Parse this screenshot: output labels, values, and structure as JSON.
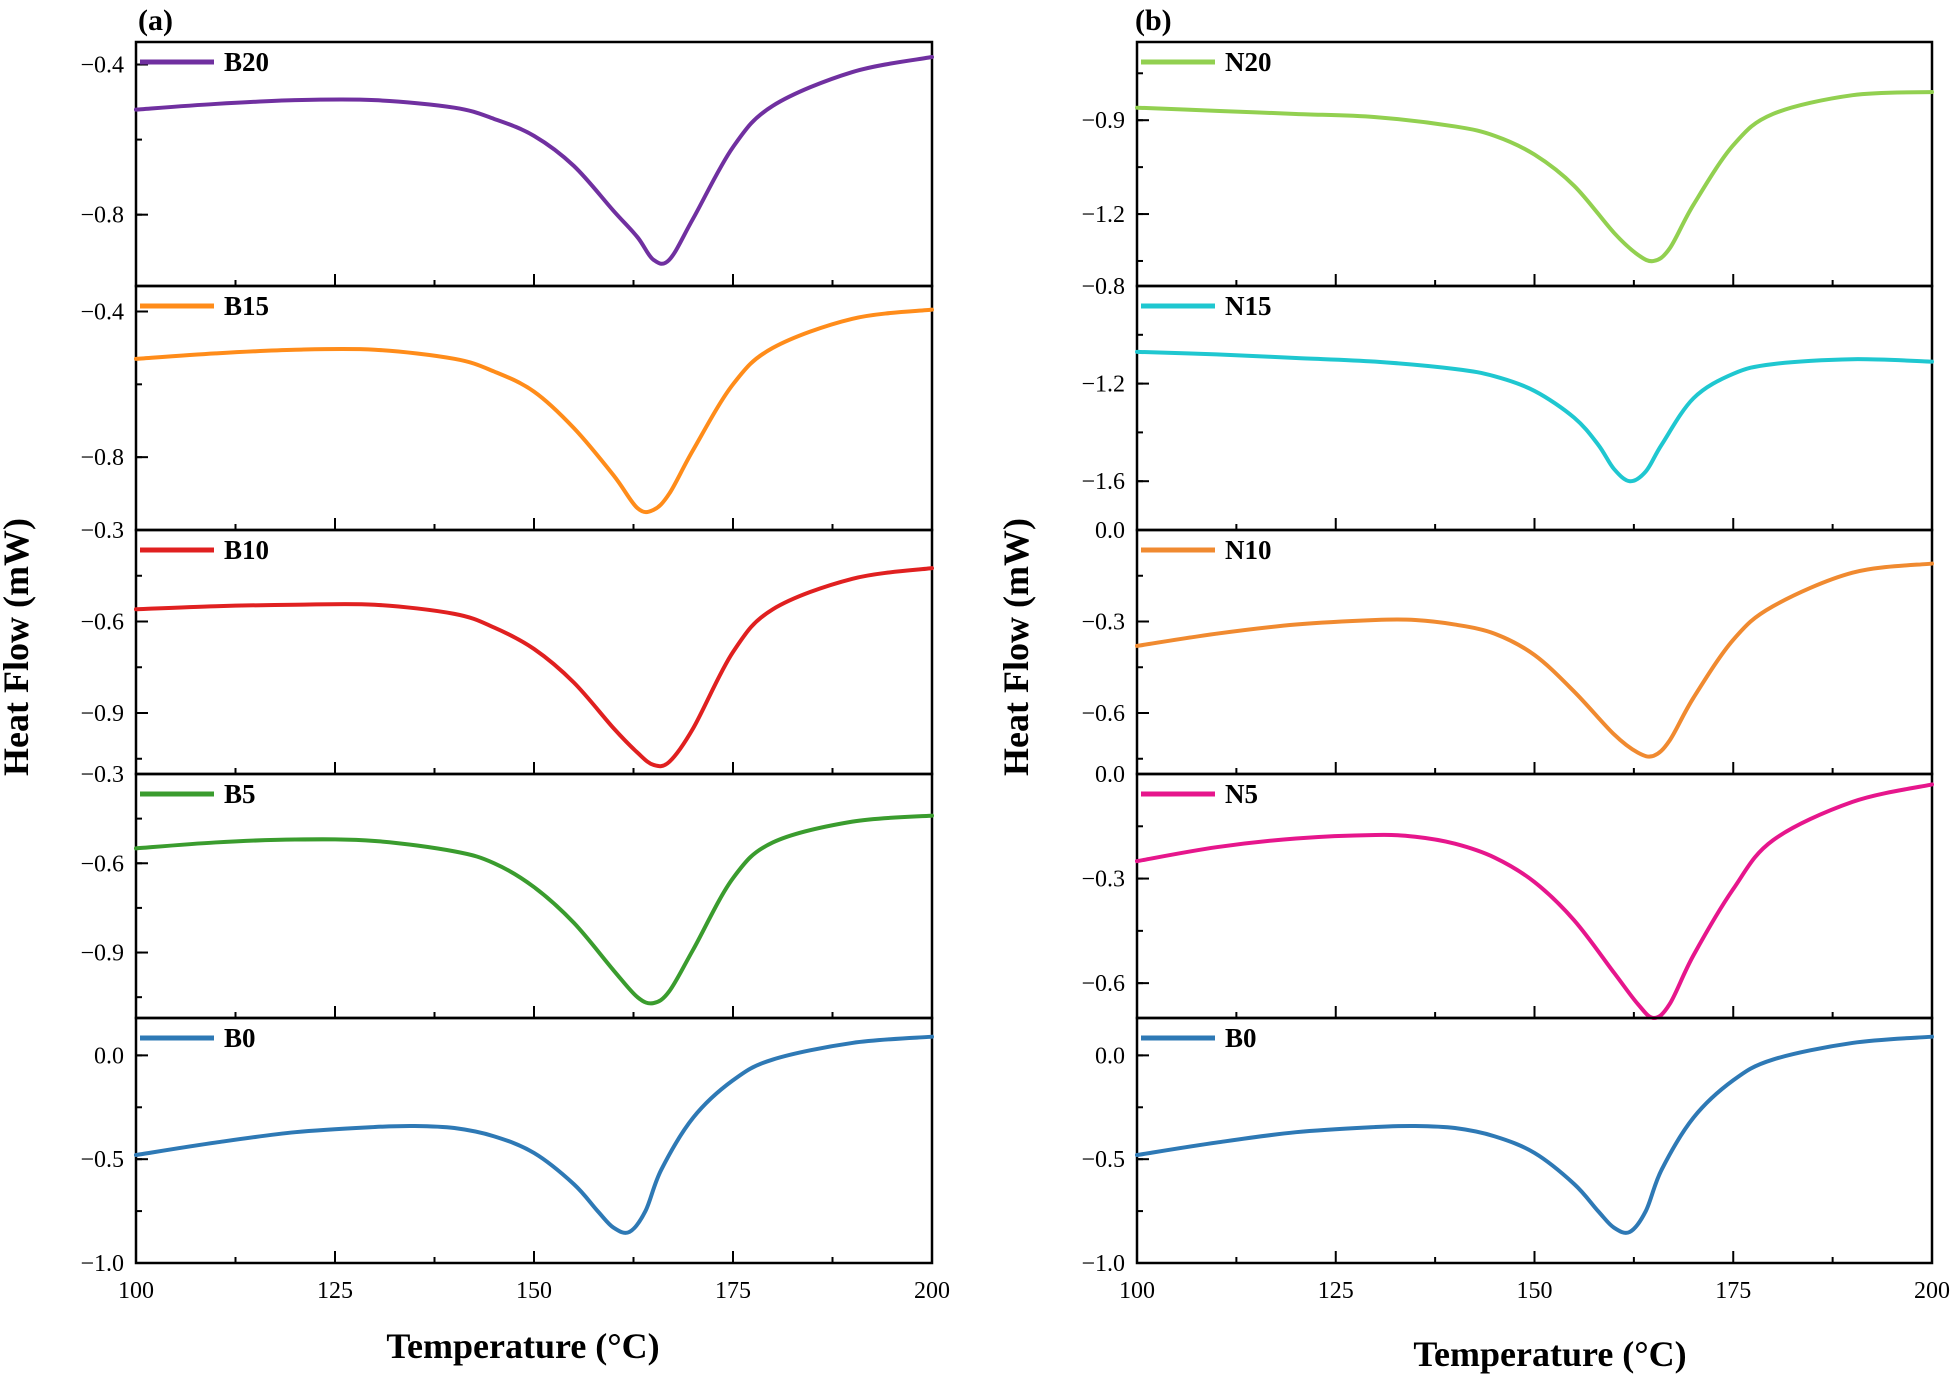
{
  "xlabel": "Temperature (°C)",
  "ylabel": "Heat Flow (mW)",
  "chart_data": [
    {
      "type": "line",
      "panel_label": "(a)",
      "xlabel": "Temperature (°C)",
      "ylabel": "Heat Flow (mW)",
      "xlim": [
        100,
        200
      ],
      "xticks": [
        100,
        125,
        150,
        175,
        200
      ],
      "subplots": [
        {
          "name": "B20",
          "color": "#7030a0",
          "ylim": [
            -0.99,
            -0.34
          ],
          "yticks": [
            -0.4,
            -0.8
          ],
          "x": [
            100,
            110,
            120,
            130,
            140,
            145,
            150,
            155,
            160,
            163,
            165,
            167,
            170,
            175,
            180,
            190,
            200
          ],
          "y": [
            -0.52,
            -0.505,
            -0.495,
            -0.495,
            -0.515,
            -0.545,
            -0.59,
            -0.67,
            -0.79,
            -0.86,
            -0.92,
            -0.92,
            -0.81,
            -0.62,
            -0.51,
            -0.42,
            -0.38
          ]
        },
        {
          "name": "B15",
          "color": "#ff8c1a",
          "ylim": [
            -1.0,
            -0.33
          ],
          "yticks": [
            -0.4,
            -0.8
          ],
          "x": [
            100,
            110,
            120,
            130,
            140,
            145,
            150,
            155,
            160,
            163,
            165,
            167,
            170,
            175,
            180,
            190,
            200
          ],
          "y": [
            -0.53,
            -0.515,
            -0.505,
            -0.505,
            -0.53,
            -0.565,
            -0.62,
            -0.72,
            -0.85,
            -0.94,
            -0.945,
            -0.9,
            -0.78,
            -0.6,
            -0.5,
            -0.42,
            -0.395
          ]
        },
        {
          "name": "B10",
          "color": "#e02020",
          "ylim": [
            -1.1,
            -0.3
          ],
          "yticks": [
            -0.3,
            -0.6,
            -0.9
          ],
          "x": [
            100,
            110,
            120,
            130,
            140,
            145,
            150,
            155,
            160,
            163,
            165,
            167,
            170,
            175,
            180,
            190,
            200
          ],
          "y": [
            -0.56,
            -0.55,
            -0.545,
            -0.545,
            -0.575,
            -0.62,
            -0.69,
            -0.8,
            -0.95,
            -1.03,
            -1.07,
            -1.06,
            -0.95,
            -0.7,
            -0.56,
            -0.46,
            -0.425
          ]
        },
        {
          "name": "B5",
          "color": "#3a9c2e",
          "ylim": [
            -1.12,
            -0.3
          ],
          "yticks": [
            -0.3,
            -0.6,
            -0.9
          ],
          "x": [
            100,
            110,
            120,
            130,
            140,
            145,
            150,
            155,
            160,
            163,
            165,
            167,
            170,
            175,
            180,
            190,
            200
          ],
          "y": [
            -0.55,
            -0.53,
            -0.52,
            -0.525,
            -0.56,
            -0.6,
            -0.68,
            -0.8,
            -0.96,
            -1.05,
            -1.07,
            -1.03,
            -0.89,
            -0.65,
            -0.53,
            -0.46,
            -0.44
          ]
        },
        {
          "name": "B0",
          "color": "#2e79b5",
          "ylim": [
            -1.0,
            0.18
          ],
          "yticks": [
            0.0,
            -0.5,
            -1.0
          ],
          "x": [
            100,
            110,
            120,
            130,
            135,
            140,
            145,
            150,
            155,
            158,
            160,
            162,
            164,
            166,
            170,
            175,
            180,
            190,
            200
          ],
          "y": [
            -0.48,
            -0.42,
            -0.37,
            -0.345,
            -0.34,
            -0.35,
            -0.39,
            -0.47,
            -0.62,
            -0.75,
            -0.83,
            -0.85,
            -0.75,
            -0.55,
            -0.3,
            -0.12,
            -0.02,
            0.06,
            0.09
          ]
        }
      ]
    },
    {
      "type": "line",
      "panel_label": "(b)",
      "xlabel": "Temperature (°C)",
      "ylabel": "Heat Flow (mW)",
      "xlim": [
        100,
        200
      ],
      "xticks": [
        100,
        125,
        150,
        175,
        200
      ],
      "subplots": [
        {
          "name": "N20",
          "color": "#92d050",
          "ylim": [
            -1.43,
            -0.65
          ],
          "yticks": [
            -0.9,
            -1.2
          ],
          "x": [
            100,
            110,
            120,
            130,
            140,
            145,
            150,
            155,
            160,
            163,
            165,
            167,
            170,
            175,
            180,
            190,
            200
          ],
          "y": [
            -0.86,
            -0.87,
            -0.88,
            -0.89,
            -0.92,
            -0.95,
            -1.01,
            -1.11,
            -1.26,
            -1.33,
            -1.35,
            -1.31,
            -1.17,
            -0.98,
            -0.88,
            -0.82,
            -0.81
          ]
        },
        {
          "name": "N15",
          "color": "#1fc7d0",
          "ylim": [
            -1.8,
            -0.8
          ],
          "yticks": [
            -0.8,
            -1.2,
            -1.6
          ],
          "x": [
            100,
            110,
            120,
            130,
            140,
            145,
            150,
            155,
            158,
            160,
            162,
            164,
            166,
            170,
            175,
            180,
            190,
            200
          ],
          "y": [
            -1.07,
            -1.08,
            -1.095,
            -1.11,
            -1.14,
            -1.17,
            -1.23,
            -1.34,
            -1.45,
            -1.55,
            -1.6,
            -1.56,
            -1.45,
            -1.26,
            -1.16,
            -1.12,
            -1.1,
            -1.11
          ]
        },
        {
          "name": "N10",
          "color": "#f08a30",
          "ylim": [
            -0.8,
            0.0
          ],
          "yticks": [
            0.0,
            -0.3,
            -0.6
          ],
          "x": [
            100,
            110,
            120,
            130,
            135,
            140,
            145,
            150,
            155,
            160,
            163,
            165,
            167,
            170,
            175,
            180,
            190,
            200
          ],
          "y": [
            -0.38,
            -0.34,
            -0.31,
            -0.295,
            -0.295,
            -0.31,
            -0.34,
            -0.41,
            -0.53,
            -0.67,
            -0.73,
            -0.74,
            -0.69,
            -0.55,
            -0.36,
            -0.25,
            -0.14,
            -0.11
          ]
        },
        {
          "name": "N5",
          "color": "#e6168c",
          "ylim": [
            -0.7,
            0.0
          ],
          "yticks": [
            0.0,
            -0.3,
            -0.6
          ],
          "x": [
            100,
            110,
            120,
            130,
            135,
            140,
            145,
            150,
            155,
            160,
            163,
            165,
            167,
            170,
            175,
            180,
            190,
            200
          ],
          "y": [
            -0.25,
            -0.21,
            -0.185,
            -0.175,
            -0.18,
            -0.2,
            -0.24,
            -0.31,
            -0.42,
            -0.57,
            -0.66,
            -0.7,
            -0.66,
            -0.52,
            -0.33,
            -0.19,
            -0.08,
            -0.03
          ]
        },
        {
          "name": "B0",
          "color": "#2e79b5",
          "ylim": [
            -1.0,
            0.18
          ],
          "yticks": [
            0.0,
            -0.5,
            -1.0
          ],
          "x": [
            100,
            110,
            120,
            130,
            135,
            140,
            145,
            150,
            155,
            158,
            160,
            162,
            164,
            166,
            170,
            175,
            180,
            190,
            200
          ],
          "y": [
            -0.48,
            -0.42,
            -0.37,
            -0.345,
            -0.34,
            -0.35,
            -0.39,
            -0.47,
            -0.62,
            -0.75,
            -0.83,
            -0.85,
            -0.75,
            -0.55,
            -0.3,
            -0.12,
            -0.02,
            0.06,
            0.09
          ]
        }
      ]
    }
  ]
}
